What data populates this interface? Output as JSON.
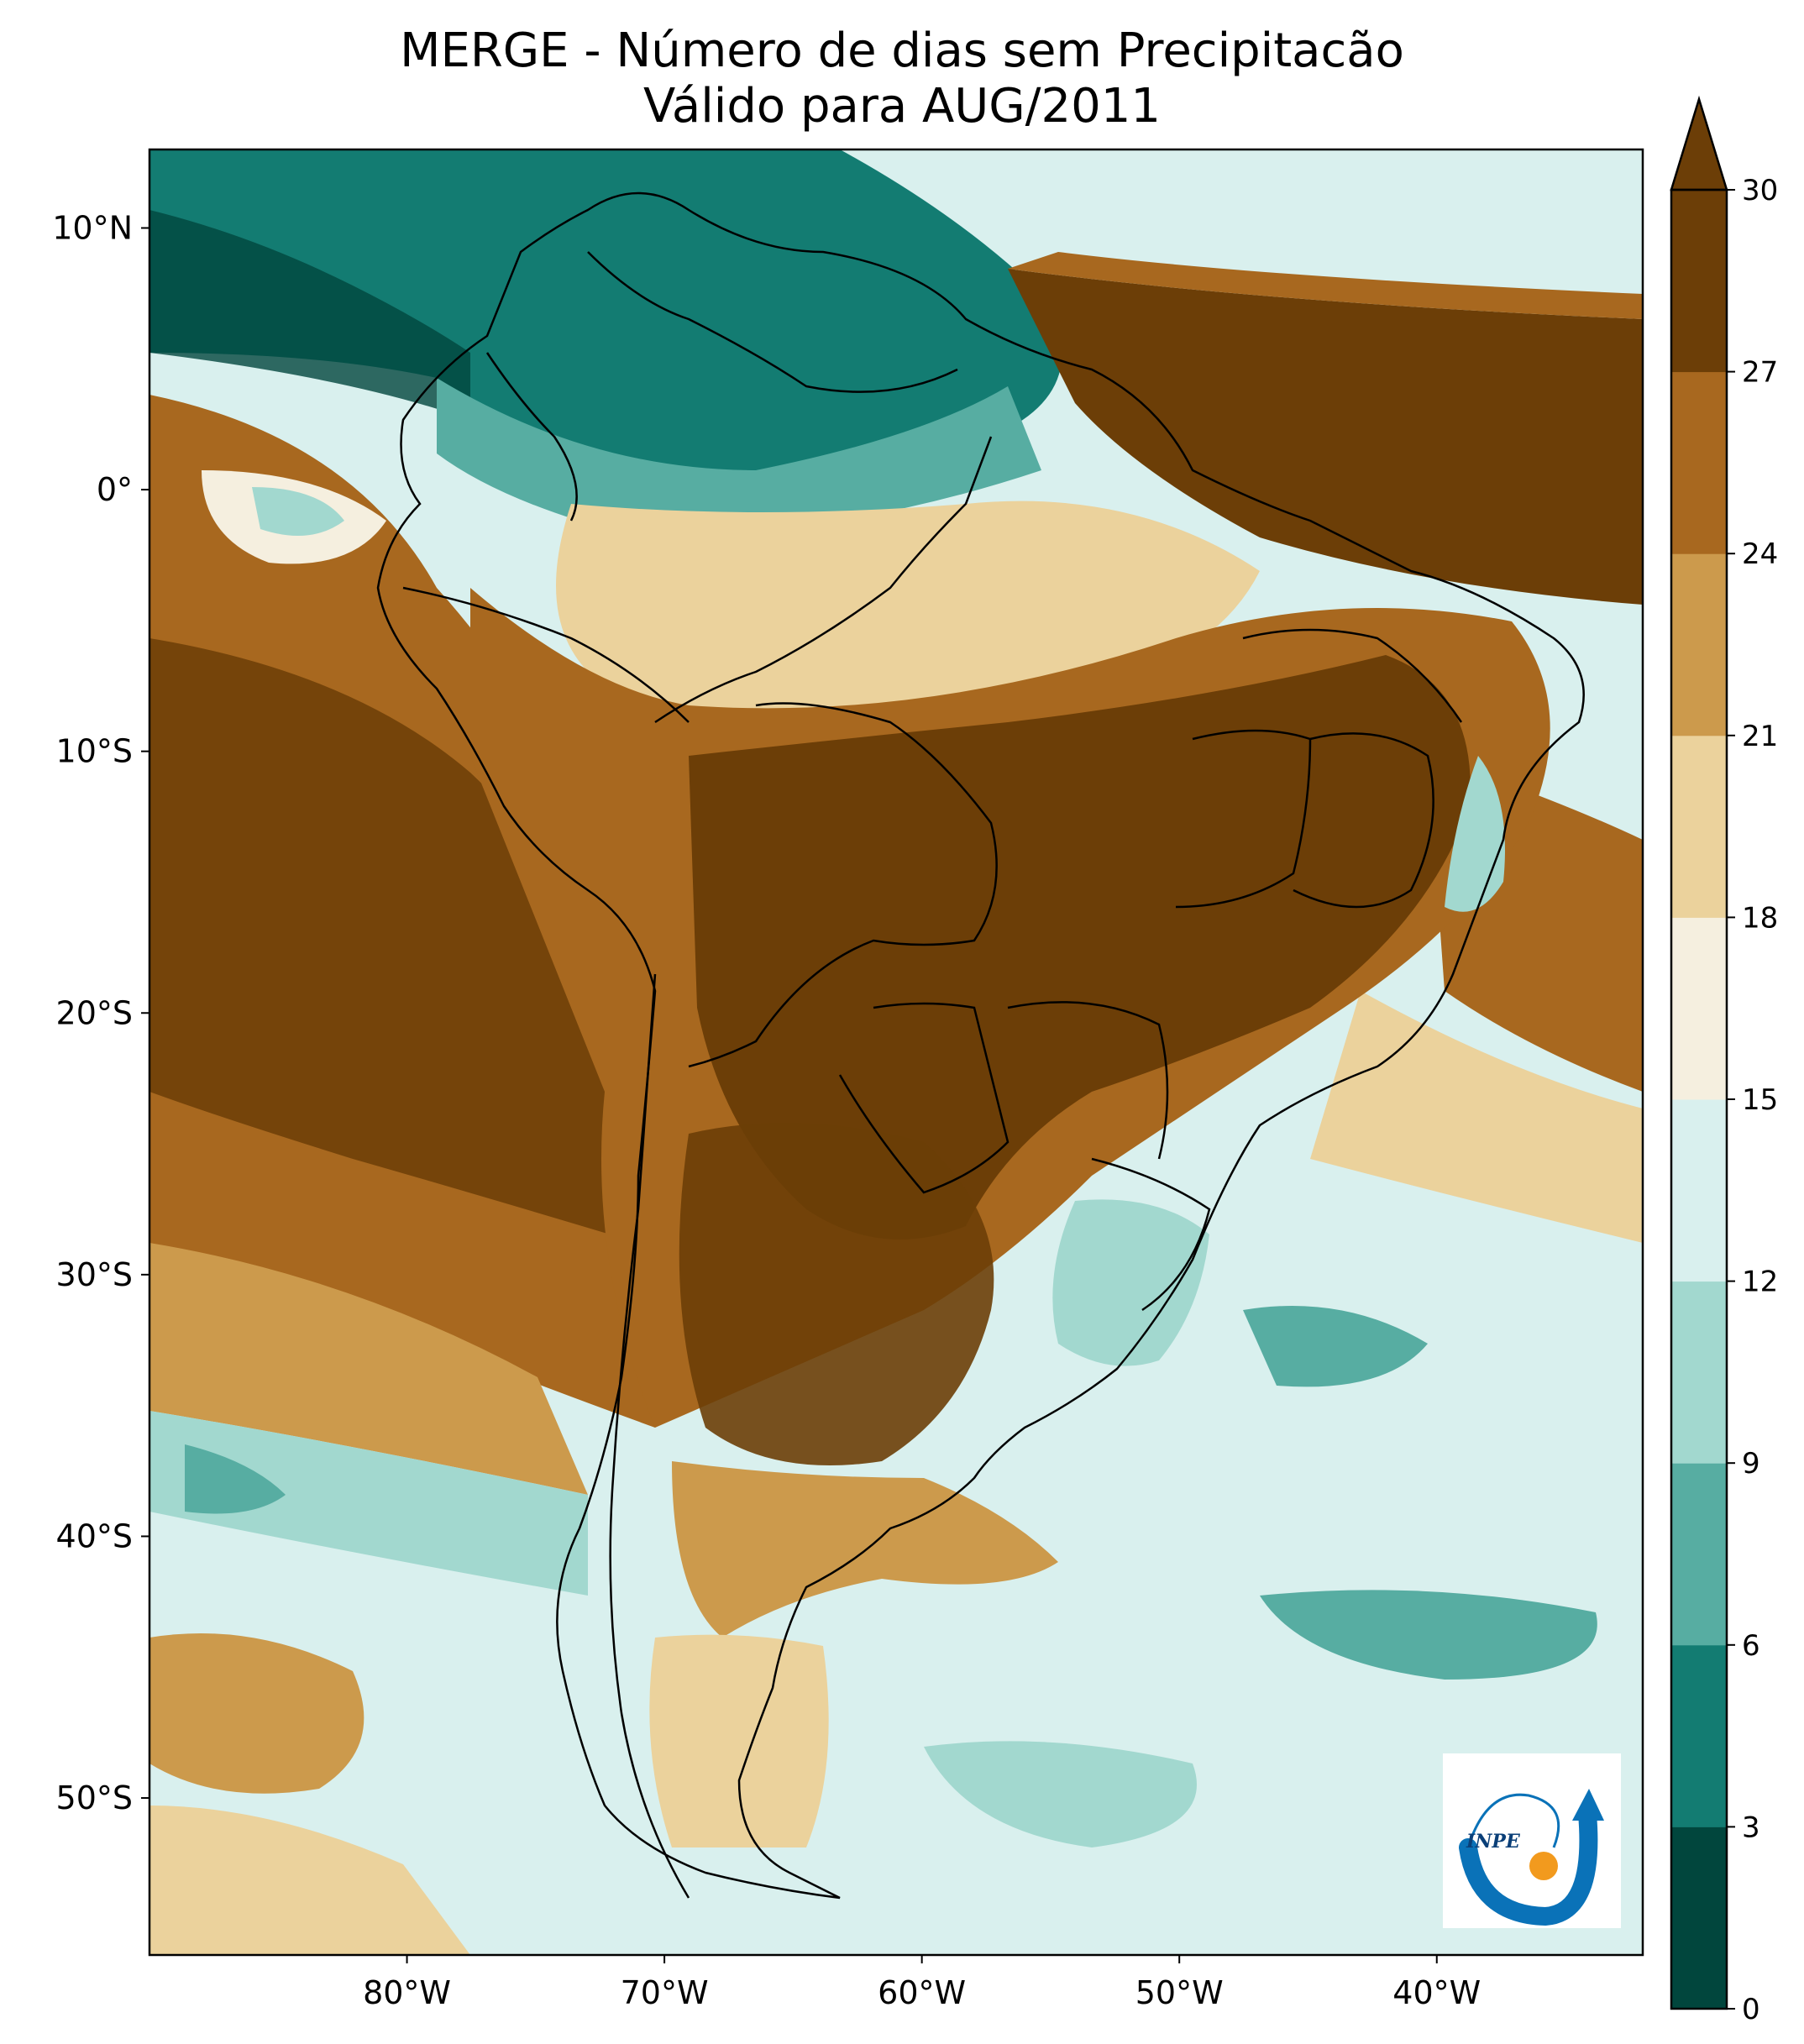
{
  "title": {
    "line1": "MERGE - Número de dias sem Precipitacão",
    "line2": "Válido para AUG/2011"
  },
  "axes": {
    "lat_labels": [
      {
        "value": 10,
        "label": "10°N"
      },
      {
        "value": 0,
        "label": "0°"
      },
      {
        "value": -10,
        "label": "10°S"
      },
      {
        "value": -20,
        "label": "20°S"
      },
      {
        "value": -30,
        "label": "30°S"
      },
      {
        "value": -40,
        "label": "40°S"
      },
      {
        "value": -50,
        "label": "50°S"
      }
    ],
    "lon_labels": [
      {
        "value": -80,
        "label": "80°W"
      },
      {
        "value": -70,
        "label": "70°W"
      },
      {
        "value": -60,
        "label": "60°W"
      },
      {
        "value": -50,
        "label": "50°W"
      },
      {
        "value": -40,
        "label": "40°W"
      }
    ],
    "lon_range": [
      -90,
      -32
    ],
    "lat_range": [
      -56,
      13
    ]
  },
  "colorbar": {
    "levels": [
      0,
      3,
      6,
      9,
      12,
      15,
      18,
      21,
      24,
      27,
      30
    ],
    "tick_labels": [
      "0",
      "3",
      "6",
      "9",
      "12",
      "15",
      "18",
      "21",
      "24",
      "27",
      "30"
    ],
    "colors": [
      "#01463d",
      "#137c72",
      "#57ada2",
      "#a2d8cf",
      "#d9f0ee",
      "#f5efdf",
      "#ebd29c",
      "#cc9a4c",
      "#a8681f",
      "#6c3e07"
    ],
    "extend": "max"
  },
  "map_colors": {
    "ocean_pacific": "#a8681f",
    "atlantic_south": "#d9f0ee",
    "continent_dry": "#6c3e07",
    "north_wet": "#137c72",
    "border": "#000000"
  },
  "logo": {
    "text": "INPE",
    "arrow_color": "#0a72b8",
    "sun_color": "#f29a1e"
  }
}
